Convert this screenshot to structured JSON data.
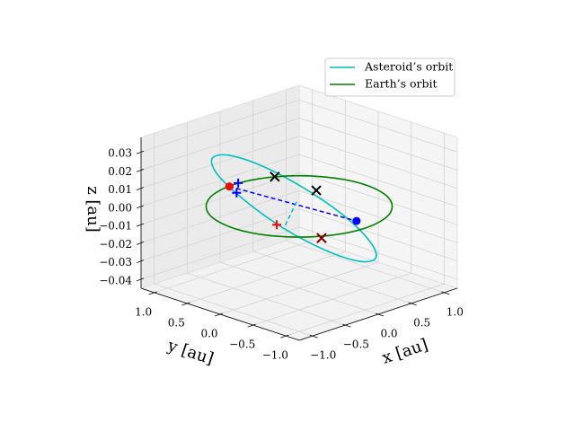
{
  "chart_data": {
    "type": "line3d",
    "xlabel": "x [au]",
    "ylabel": "y [au]",
    "zlabel": "z [au]",
    "xlim": [
      -1.2,
      1.2
    ],
    "ylim": [
      -1.2,
      1.2
    ],
    "zlim": [
      -0.045,
      0.038
    ],
    "xticks": [
      {
        "value": -1,
        "label": "−1.0"
      },
      {
        "value": -0.5,
        "label": "−0.5"
      },
      {
        "value": 0,
        "label": "0.0"
      },
      {
        "value": 0.5,
        "label": "0.5"
      },
      {
        "value": 1,
        "label": "1.0"
      }
    ],
    "yticks": [
      {
        "value": -1,
        "label": "−1.0"
      },
      {
        "value": -0.5,
        "label": "−0.5"
      },
      {
        "value": 0,
        "label": "0.0"
      },
      {
        "value": 0.5,
        "label": "0.5"
      },
      {
        "value": 1,
        "label": "1.0"
      }
    ],
    "zticks": [
      {
        "value": -0.04,
        "label": "−0.04"
      },
      {
        "value": -0.03,
        "label": "−0.03"
      },
      {
        "value": -0.02,
        "label": "−0.02"
      },
      {
        "value": -0.01,
        "label": "−0.01"
      },
      {
        "value": 0,
        "label": "0.00"
      },
      0.01,
      0.02,
      0.03
    ],
    "grid": true,
    "legend": "upper right",
    "series": [
      {
        "name": "Asteroid’s orbit",
        "color": "#00bfbf",
        "x": [
          0.58,
          0.45,
          0.19,
          -0.13,
          -0.42,
          -0.62,
          -0.66,
          -0.53,
          -0.27,
          0.05,
          0.35,
          0.54
        ],
        "y": [
          -0.58,
          -0.45,
          -0.19,
          0.13,
          0.42,
          0.62,
          0.66,
          0.53,
          0.27,
          -0.05,
          -0.35,
          -0.54
        ],
        "z": [
          -0.0285,
          -0.0301,
          -0.0238,
          -0.0115,
          0.0037,
          0.0176,
          0.0265,
          0.0281,
          0.0219,
          0.0095,
          -0.0057,
          -0.0196
        ]
      },
      {
        "name": "Earth’s orbit",
        "color": "#008000",
        "x": [
          1,
          0.866,
          0.5,
          0,
          -0.5,
          -0.866,
          -1,
          -0.866,
          -0.5,
          0,
          0.5,
          0.866
        ],
        "y": [
          0,
          0.5,
          0.866,
          1,
          0.866,
          0.5,
          0,
          -0.5,
          -0.866,
          -1,
          -0.866,
          -0.5
        ],
        "z": [
          0,
          0,
          0,
          0,
          0,
          0,
          0,
          0,
          0,
          0,
          0,
          0
        ]
      }
    ],
    "segments": [
      {
        "color": "#0000ff",
        "x": [
          -0.07,
          0.1
        ],
        "y": [
          0.99,
          -0.77
        ],
        "z": [
          0,
          0
        ]
      },
      {
        "color": "#00bfbf",
        "x": [
          0.085,
          -0.57
        ],
        "y": [
          0.125,
          -0.35
        ],
        "z": [
          0,
          0
        ]
      }
    ],
    "markers": [
      {
        "marker": "o",
        "color": "#ff0000",
        "x": [
          -0.07
        ],
        "y": [
          0.99
        ],
        "z": [
          0
        ]
      },
      {
        "marker": "o",
        "color": "#0000ff",
        "x": [
          0.1
        ],
        "y": [
          -0.77
        ],
        "z": [
          0
        ]
      },
      {
        "marker": "+",
        "color": "#0000ff",
        "x": [
          0.075,
          -0.16
        ],
        "y": [
          1.0,
          0.79
        ],
        "z": [
          0,
          0
        ]
      },
      {
        "marker": "+",
        "color": "#ff0000",
        "x": [
          -0.59
        ],
        "y": [
          -0.25
        ],
        "z": [
          0
        ]
      },
      {
        "marker": "x",
        "color": "#000000",
        "x": [
          0.5,
          0.5,
          -0.56
        ],
        "y": [
          0.87,
          0.24,
          -0.9
        ],
        "z": [
          0,
          0,
          0
        ]
      },
      {
        "marker": "x",
        "color": "#8b0000",
        "x": [
          -0.56
        ],
        "y": [
          -0.9
        ],
        "z": [
          0
        ]
      }
    ]
  }
}
